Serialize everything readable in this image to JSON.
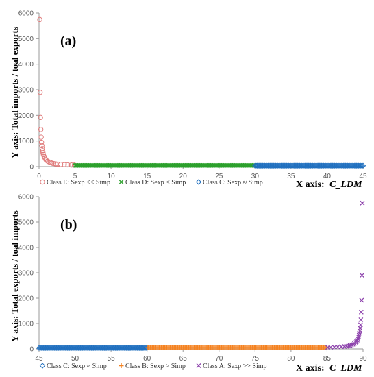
{
  "chart_data": [
    {
      "type": "scatter",
      "panel_label": "(a)",
      "ylabel": "Y axis:  Total imports / toal exports",
      "xlabel_prefix": "X axis: ",
      "xlabel_var": "C_LDM",
      "xlim": [
        0,
        45
      ],
      "ylim": [
        0,
        6000
      ],
      "xticks": [
        0,
        5,
        10,
        15,
        20,
        25,
        30,
        35,
        40,
        45
      ],
      "yticks": [
        0,
        1000,
        2000,
        3000,
        4000,
        5000,
        6000
      ],
      "grid": false,
      "legend_position": "bottom",
      "series": [
        {
          "name": "Class E: Sexp << Simp",
          "marker": "circle",
          "color": "#e07b7b",
          "points": [
            [
              0.1,
              5750
            ],
            [
              0.15,
              2900
            ],
            [
              0.2,
              1920
            ],
            [
              0.25,
              1450
            ],
            [
              0.3,
              1150
            ],
            [
              0.35,
              950
            ],
            [
              0.4,
              820
            ],
            [
              0.45,
              700
            ],
            [
              0.5,
              620
            ],
            [
              0.55,
              540
            ],
            [
              0.6,
              470
            ],
            [
              0.7,
              400
            ],
            [
              0.8,
              340
            ],
            [
              0.9,
              290
            ],
            [
              1.0,
              250
            ],
            [
              1.2,
              210
            ],
            [
              1.4,
              180
            ],
            [
              1.6,
              155
            ],
            [
              1.8,
              135
            ],
            [
              2.0,
              120
            ],
            [
              2.3,
              105
            ],
            [
              2.6,
              95
            ],
            [
              3.0,
              85
            ],
            [
              3.5,
              75
            ],
            [
              4.0,
              68
            ],
            [
              4.5,
              62
            ],
            [
              4.9,
              58
            ]
          ]
        },
        {
          "name": "Class D: Sexp < Simp",
          "marker": "x",
          "color": "#2ca02c",
          "x_range": [
            5,
            30
          ],
          "y_approx": 45
        },
        {
          "name": "Class C: Sexp ≈ Simp",
          "marker": "diamond",
          "color": "#1f6fbf",
          "x_range": [
            30,
            45
          ],
          "y_approx": 35
        }
      ]
    },
    {
      "type": "scatter",
      "panel_label": "(b)",
      "ylabel": "Y axis:  Total exports / toal imports",
      "xlabel_prefix": "X axis: ",
      "xlabel_var": "C_LDM",
      "xlim": [
        45,
        90
      ],
      "ylim": [
        0,
        6000
      ],
      "xticks": [
        45,
        50,
        55,
        60,
        65,
        70,
        75,
        80,
        85,
        90
      ],
      "yticks": [
        0,
        1000,
        2000,
        3000,
        4000,
        5000,
        6000
      ],
      "grid": false,
      "legend_position": "bottom",
      "series": [
        {
          "name": "Class C: Sexp ≈ Simp",
          "marker": "diamond",
          "color": "#1f6fbf",
          "x_range": [
            45,
            60
          ],
          "y_approx": 35
        },
        {
          "name": "Class B: Sexp > Simp",
          "marker": "plus",
          "color": "#f58220",
          "x_range": [
            60,
            85
          ],
          "y_approx": 45
        },
        {
          "name": "Class A: Sexp >> Simp",
          "marker": "x",
          "color": "#8e44ad",
          "points": [
            [
              85.1,
              58
            ],
            [
              85.5,
              62
            ],
            [
              86.0,
              68
            ],
            [
              86.5,
              75
            ],
            [
              87.0,
              85
            ],
            [
              87.4,
              95
            ],
            [
              87.7,
              105
            ],
            [
              88.0,
              120
            ],
            [
              88.2,
              135
            ],
            [
              88.4,
              155
            ],
            [
              88.6,
              180
            ],
            [
              88.8,
              210
            ],
            [
              89.0,
              250
            ],
            [
              89.1,
              290
            ],
            [
              89.2,
              340
            ],
            [
              89.3,
              400
            ],
            [
              89.4,
              470
            ],
            [
              89.45,
              540
            ],
            [
              89.5,
              620
            ],
            [
              89.55,
              700
            ],
            [
              89.6,
              820
            ],
            [
              89.65,
              950
            ],
            [
              89.7,
              1150
            ],
            [
              89.75,
              1450
            ],
            [
              89.8,
              1920
            ],
            [
              89.85,
              2900
            ],
            [
              89.9,
              5750
            ]
          ]
        }
      ]
    }
  ]
}
